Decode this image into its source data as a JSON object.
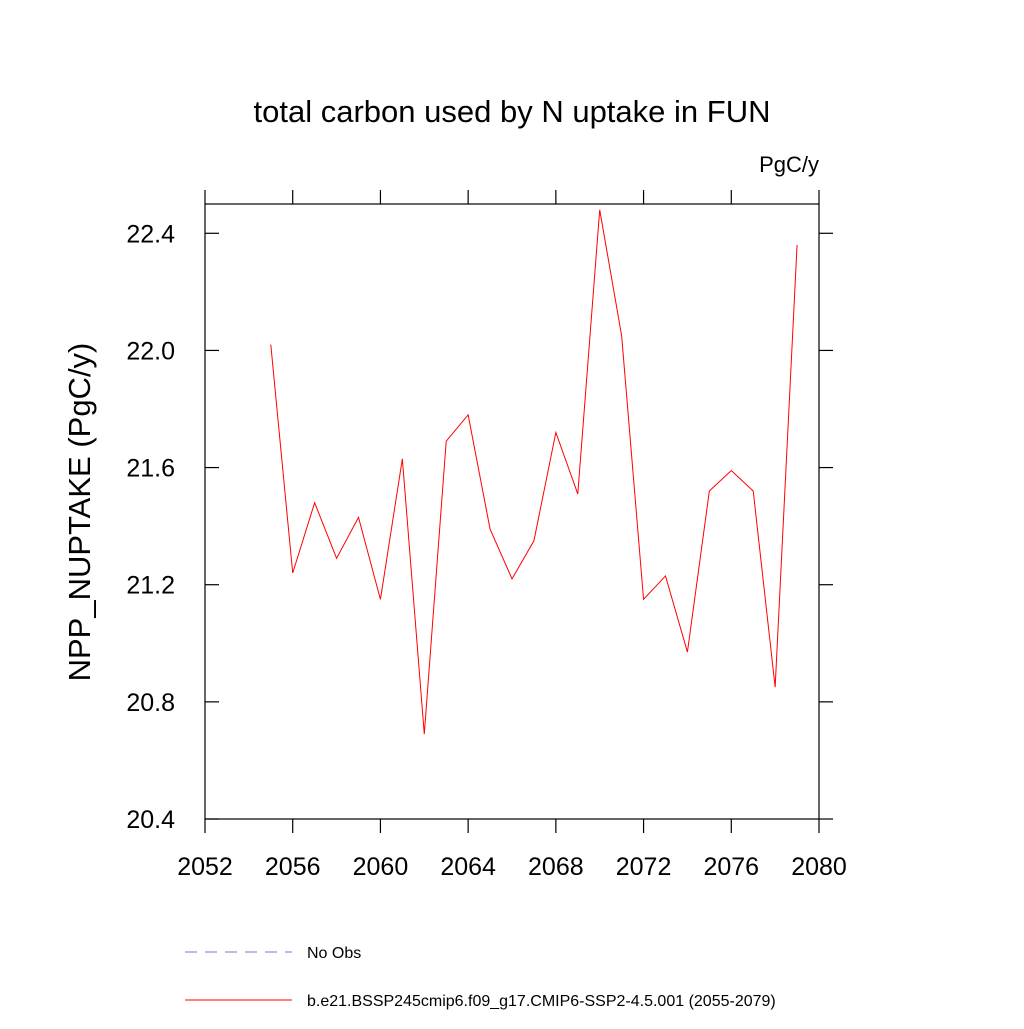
{
  "chart_data": {
    "type": "line",
    "title": "total carbon used by N uptake in FUN",
    "units": "PgC/y",
    "y_label": "NPP_NUPTAKE  (PgC/y)",
    "x": [
      2055,
      2056,
      2057,
      2058,
      2059,
      2060,
      2061,
      2062,
      2063,
      2064,
      2065,
      2066,
      2067,
      2068,
      2069,
      2070,
      2071,
      2072,
      2073,
      2074,
      2075,
      2076,
      2077,
      2078,
      2079
    ],
    "series": [
      {
        "name": "b.e21.BSSP245cmip6.f09_g17.CMIP6-SSP2-4.5.001 (2055-2079)",
        "color": "#ff0000",
        "values": [
          22.02,
          21.24,
          21.48,
          21.29,
          21.43,
          21.15,
          21.63,
          20.69,
          21.69,
          21.78,
          21.39,
          21.22,
          21.35,
          21.72,
          21.51,
          22.48,
          22.05,
          21.15,
          21.23,
          20.97,
          21.52,
          21.59,
          21.52,
          20.85,
          22.36
        ]
      }
    ],
    "legend_extra": [
      {
        "name": "No Obs",
        "color": "#7a7ad0",
        "dash": "12 8"
      }
    ],
    "xlim": [
      2052,
      2080
    ],
    "xticks": [
      2052,
      2056,
      2060,
      2064,
      2068,
      2072,
      2076,
      2080
    ],
    "ylim": [
      20.4,
      22.5
    ],
    "yticks": [
      20.4,
      20.8,
      21.2,
      21.6,
      {
        "value": 22,
        "label": "22.0"
      },
      22.4
    ]
  }
}
